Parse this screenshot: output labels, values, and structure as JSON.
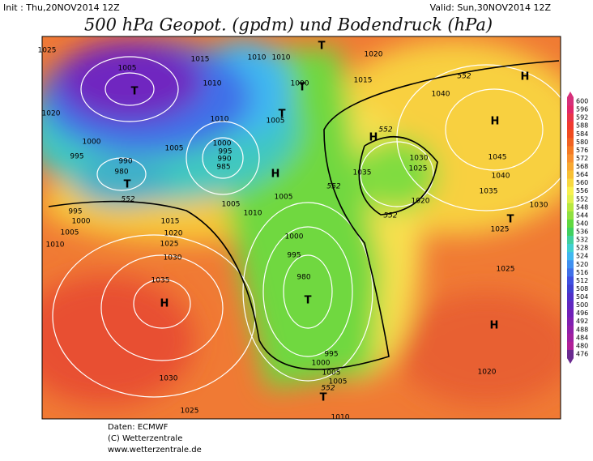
{
  "header": {
    "init": "Init : Thu,20NOV2014 12Z",
    "valid": "Valid: Sun,30NOV2014 12Z",
    "title": "500 hPa Geopot. (gpdm) und Bodendruck (hPa)"
  },
  "colorbar": {
    "levels": [
      600,
      596,
      592,
      588,
      584,
      580,
      576,
      572,
      568,
      564,
      560,
      556,
      552,
      548,
      544,
      540,
      536,
      532,
      528,
      524,
      520,
      516,
      512,
      508,
      504,
      500,
      496,
      492,
      488,
      484,
      480,
      476
    ],
    "colors": [
      "#d6307a",
      "#e02868",
      "#e83448",
      "#f03a30",
      "#f04c20",
      "#f06222",
      "#f47a24",
      "#f89030",
      "#f8a832",
      "#f8c034",
      "#f8d840",
      "#f8f050",
      "#e0f050",
      "#b8e840",
      "#90e040",
      "#60d840",
      "#40d060",
      "#40d0a0",
      "#40d0d0",
      "#40b8f0",
      "#4090f0",
      "#4070e8",
      "#4050e0",
      "#4040d0",
      "#5030c8",
      "#6028c0",
      "#7020b8",
      "#8020b0",
      "#9020a8",
      "#a020a0",
      "#b02098",
      "#6a2a90"
    ]
  },
  "isobar_labels": [
    "1025",
    "1005",
    "1015",
    "1010",
    "1010",
    "1010",
    "1020",
    "1015",
    "1000",
    "1020",
    "1000",
    "995",
    "990",
    "980",
    "1005",
    "1010",
    "1000",
    "995",
    "990",
    "985",
    "1005",
    "1010",
    "1005",
    "1005",
    "995",
    "1000",
    "1005",
    "1010",
    "1015",
    "1020",
    "1025",
    "1030",
    "1035",
    "1000",
    "995",
    "980",
    "995",
    "1000",
    "1005",
    "1005",
    "1030",
    "1025",
    "1010",
    "1040",
    "1030",
    "1035",
    "1025",
    "1020",
    "1045",
    "1040",
    "1035",
    "1030",
    "1025",
    "1025",
    "1020"
  ],
  "geopotential_labels": [
    "552",
    "552",
    "552",
    "552",
    "552",
    "552"
  ],
  "pressure_centers": [
    "H",
    "H",
    "H",
    "H",
    "T",
    "T",
    "T",
    "T",
    "T",
    "H",
    "T",
    "T",
    "H",
    "T"
  ],
  "footer": {
    "lines": [
      "Daten: ECMWF",
      "(C) Wetterzentrale",
      "www.wetterzentrale.de"
    ]
  }
}
